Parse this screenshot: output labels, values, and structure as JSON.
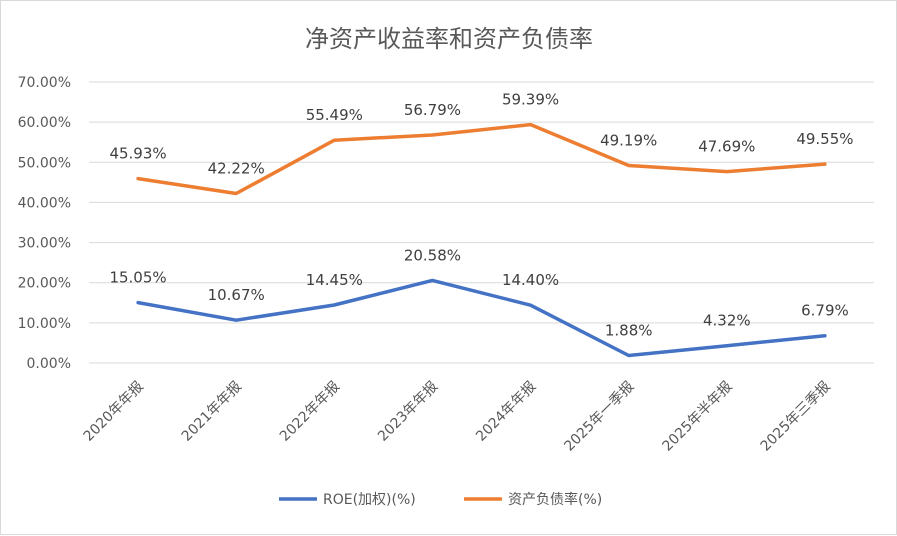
{
  "chart_data": {
    "type": "line",
    "title": "净资产收益率和资产负债率",
    "categories": [
      "2020年年报",
      "2021年年报",
      "2022年年报",
      "2023年年报",
      "2024年年报",
      "2025年一季报",
      "2025年半年报",
      "2025年三季报"
    ],
    "y_ticks": [
      "0.00%",
      "10.00%",
      "20.00%",
      "30.00%",
      "40.00%",
      "50.00%",
      "60.00%",
      "70.00%"
    ],
    "ylim": [
      0,
      70
    ],
    "grid": true,
    "legend_position": "bottom",
    "series": [
      {
        "name": "ROE(加权)(%)",
        "color": "#4472c4",
        "values": [
          15.05,
          10.67,
          14.45,
          20.58,
          14.4,
          1.88,
          4.32,
          6.79
        ],
        "labels": [
          "15.05%",
          "10.67%",
          "14.45%",
          "20.58%",
          "14.40%",
          "1.88%",
          "4.32%",
          "6.79%"
        ]
      },
      {
        "name": "资产负债率(%)",
        "color": "#ed7d31",
        "values": [
          45.93,
          42.22,
          55.49,
          56.79,
          59.39,
          49.19,
          47.69,
          49.55
        ],
        "labels": [
          "45.93%",
          "42.22%",
          "55.49%",
          "56.79%",
          "59.39%",
          "49.19%",
          "47.69%",
          "49.55%"
        ]
      }
    ]
  }
}
